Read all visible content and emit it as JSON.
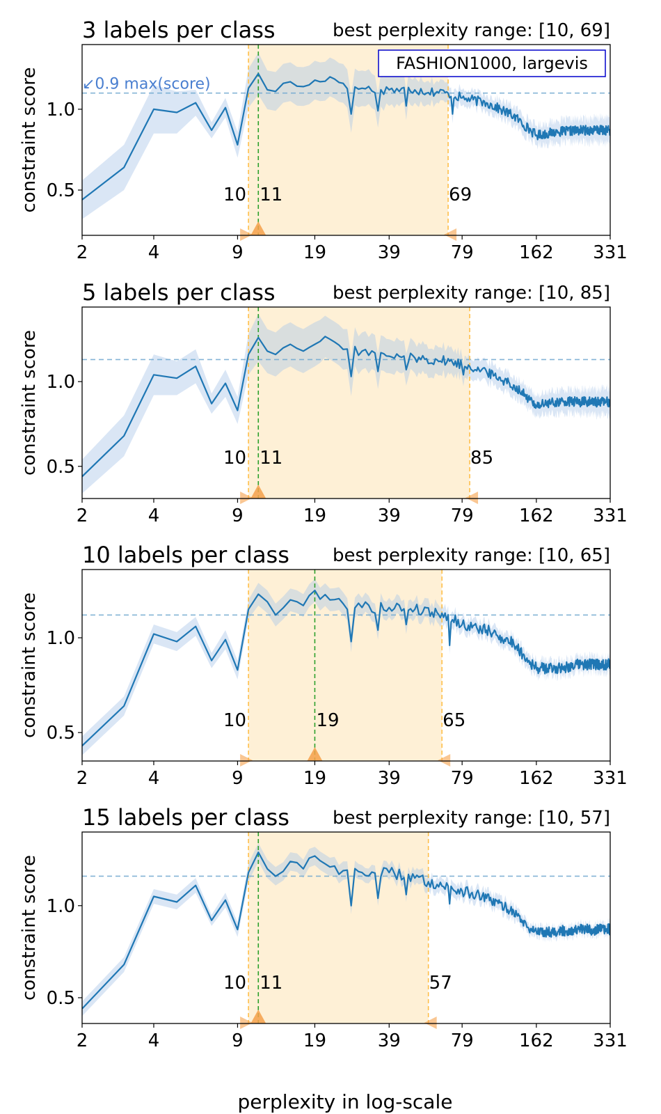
{
  "figure": {
    "xlabel": "perplexity in log-scale",
    "legend_box": "FASHION1000, largevis",
    "hline_annotation": "↙0.9 max(score)",
    "range_prefix": "best perplexity range: "
  },
  "colors": {
    "line": "#1f77b4",
    "band": "#aec7e8",
    "range_fill": "#fdebc8",
    "range_edge": "#ffbf4a",
    "best_line": "#2ca02c",
    "marker": "#f5a04a",
    "hline": "#6fa8d0",
    "annotation": "#4a7fd0",
    "legend_border": "#0000cc"
  },
  "chart_data": [
    {
      "type": "line",
      "title": "3 labels per class",
      "range_text": "[10, 69]",
      "ylabel": "constraint score",
      "xscale": "log",
      "xlim": [
        2,
        331
      ],
      "ylim": [
        0.22,
        1.4
      ],
      "xticks": [
        2,
        4,
        9,
        19,
        39,
        79,
        162,
        331
      ],
      "yticks": [
        0.5,
        1.0
      ],
      "ytick_labels": [
        "0.5",
        "1.0"
      ],
      "best_range": [
        10,
        69
      ],
      "best_perplexity": 11,
      "marker_labels": [
        "10",
        "11",
        "69"
      ],
      "threshold": 1.1,
      "show_legend": true,
      "keypoints": [
        [
          2,
          0.44,
          0.12
        ],
        [
          3,
          0.64,
          0.14
        ],
        [
          4,
          1.0,
          0.15
        ],
        [
          5,
          0.98,
          0.13
        ],
        [
          6,
          1.04,
          0.08
        ],
        [
          7,
          0.87,
          0.05
        ],
        [
          8,
          1.01,
          0.06
        ],
        [
          9,
          0.78,
          0.08
        ],
        [
          10,
          1.13,
          0.12
        ],
        [
          11,
          1.22,
          0.13
        ],
        [
          12,
          1.12,
          0.12
        ],
        [
          13,
          1.11,
          0.12
        ],
        [
          15,
          1.17,
          0.12
        ],
        [
          17,
          1.14,
          0.12
        ],
        [
          19,
          1.18,
          0.12
        ],
        [
          22,
          1.2,
          0.12
        ],
        [
          25,
          1.16,
          0.12
        ],
        [
          30,
          1.13,
          0.11
        ],
        [
          39,
          1.12,
          0.1
        ],
        [
          50,
          1.12,
          0.08
        ],
        [
          69,
          1.1,
          0.06
        ],
        [
          79,
          1.07,
          0.05
        ],
        [
          100,
          1.04,
          0.05
        ],
        [
          130,
          0.96,
          0.06
        ],
        [
          150,
          0.88,
          0.06
        ],
        [
          162,
          0.84,
          0.06
        ],
        [
          200,
          0.86,
          0.07
        ],
        [
          250,
          0.87,
          0.07
        ],
        [
          331,
          0.87,
          0.08
        ]
      ],
      "dips": [
        [
          27,
          0.97
        ],
        [
          35,
          0.99
        ],
        [
          46,
          1.02
        ],
        [
          72,
          0.97
        ]
      ]
    },
    {
      "type": "line",
      "title": "5 labels per class",
      "range_text": "[10, 85]",
      "ylabel": "constraint score",
      "xscale": "log",
      "xlim": [
        2,
        331
      ],
      "ylim": [
        0.31,
        1.44
      ],
      "xticks": [
        2,
        4,
        9,
        19,
        39,
        79,
        162,
        331
      ],
      "yticks": [
        0.5,
        1.0
      ],
      "ytick_labels": [
        "0.5",
        "1.0"
      ],
      "best_range": [
        10,
        85
      ],
      "best_perplexity": 11,
      "marker_labels": [
        "10",
        "11",
        "85"
      ],
      "threshold": 1.13,
      "show_legend": false,
      "keypoints": [
        [
          2,
          0.44,
          0.1
        ],
        [
          3,
          0.68,
          0.12
        ],
        [
          4,
          1.04,
          0.12
        ],
        [
          5,
          1.02,
          0.1
        ],
        [
          6,
          1.09,
          0.1
        ],
        [
          7,
          0.87,
          0.06
        ],
        [
          8,
          0.99,
          0.08
        ],
        [
          9,
          0.83,
          0.08
        ],
        [
          10,
          1.16,
          0.12
        ],
        [
          11,
          1.26,
          0.14
        ],
        [
          12,
          1.18,
          0.13
        ],
        [
          13,
          1.16,
          0.13
        ],
        [
          15,
          1.22,
          0.13
        ],
        [
          17,
          1.18,
          0.13
        ],
        [
          19,
          1.22,
          0.13
        ],
        [
          22,
          1.25,
          0.12
        ],
        [
          25,
          1.19,
          0.12
        ],
        [
          30,
          1.18,
          0.11
        ],
        [
          39,
          1.15,
          0.1
        ],
        [
          50,
          1.14,
          0.09
        ],
        [
          70,
          1.12,
          0.08
        ],
        [
          85,
          1.09,
          0.06
        ],
        [
          100,
          1.06,
          0.06
        ],
        [
          130,
          0.98,
          0.06
        ],
        [
          150,
          0.9,
          0.06
        ],
        [
          162,
          0.86,
          0.06
        ],
        [
          200,
          0.88,
          0.07
        ],
        [
          250,
          0.88,
          0.07
        ],
        [
          331,
          0.88,
          0.08
        ]
      ],
      "dips": [
        [
          27,
          1.03
        ],
        [
          35,
          1.06
        ],
        [
          46,
          1.07
        ],
        [
          80,
          1.04
        ]
      ]
    },
    {
      "type": "line",
      "title": "10 labels per class",
      "range_text": "[10, 65]",
      "ylabel": "constraint score",
      "xscale": "log",
      "xlim": [
        2,
        331
      ],
      "ylim": [
        0.35,
        1.36
      ],
      "xticks": [
        2,
        4,
        9,
        19,
        39,
        79,
        162,
        331
      ],
      "yticks": [
        0.5,
        1.0
      ],
      "ytick_labels": [
        "0.5",
        "1.0"
      ],
      "best_range": [
        10,
        65
      ],
      "best_perplexity": 19,
      "marker_labels": [
        "10",
        "19",
        "65"
      ],
      "threshold": 1.12,
      "show_legend": false,
      "keypoints": [
        [
          2,
          0.43,
          0.05
        ],
        [
          3,
          0.64,
          0.05
        ],
        [
          4,
          1.02,
          0.05
        ],
        [
          5,
          0.98,
          0.05
        ],
        [
          6,
          1.06,
          0.05
        ],
        [
          7,
          0.88,
          0.04
        ],
        [
          8,
          0.99,
          0.05
        ],
        [
          9,
          0.83,
          0.05
        ],
        [
          10,
          1.15,
          0.05
        ],
        [
          11,
          1.23,
          0.06
        ],
        [
          12,
          1.19,
          0.06
        ],
        [
          13,
          1.12,
          0.06
        ],
        [
          15,
          1.2,
          0.06
        ],
        [
          17,
          1.17,
          0.06
        ],
        [
          19,
          1.25,
          0.06
        ],
        [
          22,
          1.2,
          0.06
        ],
        [
          25,
          1.18,
          0.06
        ],
        [
          30,
          1.16,
          0.05
        ],
        [
          39,
          1.16,
          0.05
        ],
        [
          50,
          1.15,
          0.05
        ],
        [
          65,
          1.13,
          0.05
        ],
        [
          79,
          1.07,
          0.04
        ],
        [
          100,
          1.04,
          0.04
        ],
        [
          130,
          0.97,
          0.04
        ],
        [
          150,
          0.88,
          0.04
        ],
        [
          162,
          0.84,
          0.04
        ],
        [
          200,
          0.84,
          0.04
        ],
        [
          250,
          0.86,
          0.04
        ],
        [
          331,
          0.86,
          0.04
        ]
      ],
      "dips": [
        [
          27,
          0.98
        ],
        [
          35,
          1.04
        ],
        [
          46,
          1.07
        ],
        [
          70,
          0.96
        ]
      ]
    },
    {
      "type": "line",
      "title": "15 labels per class",
      "range_text": "[10, 57]",
      "ylabel": "constraint score",
      "xscale": "log",
      "xlim": [
        2,
        331
      ],
      "ylim": [
        0.36,
        1.4
      ],
      "xticks": [
        2,
        4,
        9,
        19,
        39,
        79,
        162,
        331
      ],
      "yticks": [
        0.5,
        1.0
      ],
      "ytick_labels": [
        "0.5",
        "1.0"
      ],
      "best_range": [
        10,
        57
      ],
      "best_perplexity": 11,
      "marker_labels": [
        "10",
        "11",
        "57"
      ],
      "threshold": 1.16,
      "show_legend": false,
      "keypoints": [
        [
          2,
          0.44,
          0.04
        ],
        [
          3,
          0.68,
          0.04
        ],
        [
          4,
          1.05,
          0.04
        ],
        [
          5,
          1.02,
          0.04
        ],
        [
          6,
          1.11,
          0.04
        ],
        [
          7,
          0.92,
          0.03
        ],
        [
          8,
          1.03,
          0.04
        ],
        [
          9,
          0.87,
          0.04
        ],
        [
          10,
          1.18,
          0.05
        ],
        [
          11,
          1.29,
          0.05
        ],
        [
          12,
          1.2,
          0.05
        ],
        [
          13,
          1.16,
          0.05
        ],
        [
          15,
          1.24,
          0.05
        ],
        [
          17,
          1.2,
          0.05
        ],
        [
          19,
          1.27,
          0.05
        ],
        [
          22,
          1.21,
          0.05
        ],
        [
          25,
          1.19,
          0.05
        ],
        [
          30,
          1.18,
          0.04
        ],
        [
          39,
          1.18,
          0.04
        ],
        [
          50,
          1.15,
          0.04
        ],
        [
          57,
          1.13,
          0.04
        ],
        [
          79,
          1.08,
          0.04
        ],
        [
          100,
          1.04,
          0.04
        ],
        [
          130,
          0.97,
          0.04
        ],
        [
          150,
          0.88,
          0.03
        ],
        [
          162,
          0.86,
          0.03
        ],
        [
          200,
          0.86,
          0.03
        ],
        [
          250,
          0.87,
          0.03
        ],
        [
          331,
          0.87,
          0.03
        ]
      ],
      "dips": [
        [
          27,
          1.0
        ],
        [
          35,
          1.04
        ],
        [
          46,
          1.06
        ],
        [
          70,
          1.01
        ]
      ]
    }
  ]
}
